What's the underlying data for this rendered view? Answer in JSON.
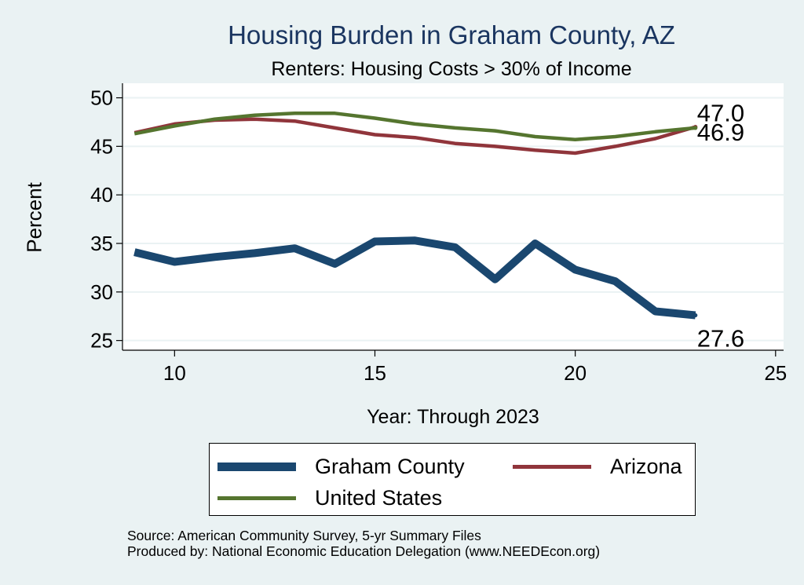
{
  "chart_data": {
    "type": "line",
    "title": "Housing Burden in Graham County, AZ",
    "subtitle": "Renters: Housing Costs > 30% of Income",
    "xlabel": "Year: Through 2023",
    "ylabel": "Percent",
    "xlim": [
      8.7,
      25.2
    ],
    "ylim": [
      24,
      51.5
    ],
    "xticks": [
      10,
      15,
      20,
      25
    ],
    "yticks": [
      25,
      30,
      35,
      40,
      45,
      50
    ],
    "grid": "horizontal",
    "legend_position": "bottom",
    "series": [
      {
        "name": "Graham County",
        "color": "#1a476f",
        "line_width": "thick",
        "x": [
          9,
          10,
          11,
          12,
          13,
          14,
          15,
          16,
          17,
          18,
          19,
          20,
          21,
          22,
          23
        ],
        "values": [
          34.1,
          33.1,
          33.6,
          34.0,
          34.5,
          32.9,
          35.2,
          35.3,
          34.6,
          31.3,
          35.0,
          32.3,
          31.1,
          28.0,
          27.6
        ],
        "end_label": "27.6"
      },
      {
        "name": "Arizona",
        "color": "#90353b",
        "line_width": "medium",
        "x": [
          9,
          10,
          11,
          12,
          13,
          14,
          15,
          16,
          17,
          18,
          19,
          20,
          21,
          22,
          23
        ],
        "values": [
          46.4,
          47.3,
          47.7,
          47.8,
          47.6,
          46.9,
          46.2,
          45.9,
          45.3,
          45.0,
          44.6,
          44.3,
          45.0,
          45.8,
          47.0
        ],
        "end_label": "47.0"
      },
      {
        "name": "United States",
        "color": "#55752f",
        "line_width": "medium",
        "x": [
          9,
          10,
          11,
          12,
          13,
          14,
          15,
          16,
          17,
          18,
          19,
          20,
          21,
          22,
          23
        ],
        "values": [
          46.3,
          47.1,
          47.8,
          48.2,
          48.4,
          48.4,
          47.9,
          47.3,
          46.9,
          46.6,
          46.0,
          45.7,
          46.0,
          46.5,
          46.9
        ],
        "end_label": "46.9"
      }
    ]
  },
  "notes": {
    "source": "Source: American Community Survey, 5-yr Summary Files",
    "produced_by": "Produced by: National Economic Education Delegation (www.NEEDEcon.org)"
  }
}
